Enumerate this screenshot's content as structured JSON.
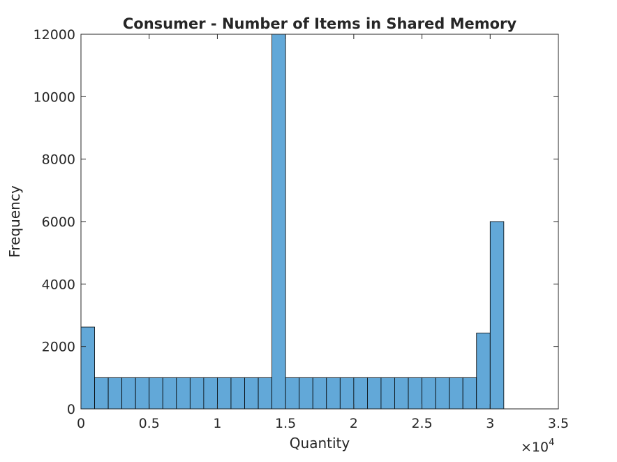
{
  "chart_data": {
    "type": "bar",
    "title": "Consumer - Number of Items in Shared Memory",
    "xlabel": "Quantity",
    "ylabel": "Frequency",
    "xlim": [
      0,
      35000
    ],
    "ylim": [
      0,
      12000
    ],
    "x_tick_labels": [
      "0",
      "0.5",
      "1",
      "1.5",
      "2",
      "2.5",
      "3",
      "3.5"
    ],
    "x_tick_values": [
      0,
      5000,
      10000,
      15000,
      20000,
      25000,
      30000,
      35000
    ],
    "x_exponent": {
      "base": "×10",
      "power": "4"
    },
    "y_tick_labels": [
      "0",
      "2000",
      "4000",
      "6000",
      "8000",
      "10000",
      "12000"
    ],
    "y_tick_values": [
      0,
      2000,
      4000,
      6000,
      8000,
      10000,
      12000
    ],
    "bin_width": 1000,
    "bins": [
      {
        "start": 0,
        "value": 2620
      },
      {
        "start": 1000,
        "value": 1000
      },
      {
        "start": 2000,
        "value": 1000
      },
      {
        "start": 3000,
        "value": 1000
      },
      {
        "start": 4000,
        "value": 1000
      },
      {
        "start": 5000,
        "value": 1000
      },
      {
        "start": 6000,
        "value": 1000
      },
      {
        "start": 7000,
        "value": 1000
      },
      {
        "start": 8000,
        "value": 1000
      },
      {
        "start": 9000,
        "value": 1000
      },
      {
        "start": 10000,
        "value": 1000
      },
      {
        "start": 11000,
        "value": 1000
      },
      {
        "start": 12000,
        "value": 1000
      },
      {
        "start": 13000,
        "value": 1000
      },
      {
        "start": 14000,
        "value": 12000
      },
      {
        "start": 15000,
        "value": 1000
      },
      {
        "start": 16000,
        "value": 1000
      },
      {
        "start": 17000,
        "value": 1000
      },
      {
        "start": 18000,
        "value": 1000
      },
      {
        "start": 19000,
        "value": 1000
      },
      {
        "start": 20000,
        "value": 1000
      },
      {
        "start": 21000,
        "value": 1000
      },
      {
        "start": 22000,
        "value": 1000
      },
      {
        "start": 23000,
        "value": 1000
      },
      {
        "start": 24000,
        "value": 1000
      },
      {
        "start": 25000,
        "value": 1000
      },
      {
        "start": 26000,
        "value": 1000
      },
      {
        "start": 27000,
        "value": 1000
      },
      {
        "start": 28000,
        "value": 1000
      },
      {
        "start": 29000,
        "value": 2430
      },
      {
        "start": 30000,
        "value": 6000
      }
    ],
    "bar_color": "#62a8d8",
    "edge_color": "#000000",
    "grid": false
  }
}
